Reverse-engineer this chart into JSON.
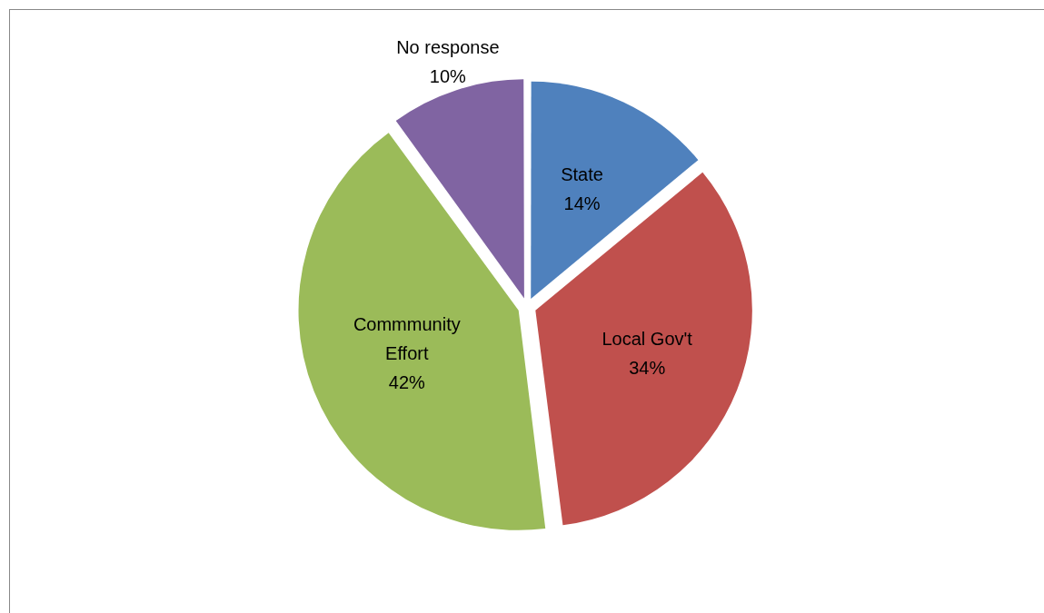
{
  "chart_data": {
    "type": "pie",
    "categories": [
      "State",
      "Local Gov't",
      "Commmunity Effort",
      "No response"
    ],
    "values": [
      14,
      34,
      42,
      10
    ],
    "colors": [
      "#4f81bd",
      "#c0504d",
      "#9bbb59",
      "#8064a2"
    ],
    "value_labels": [
      "14%",
      "34%",
      "42%",
      "10%"
    ],
    "legend": false
  }
}
